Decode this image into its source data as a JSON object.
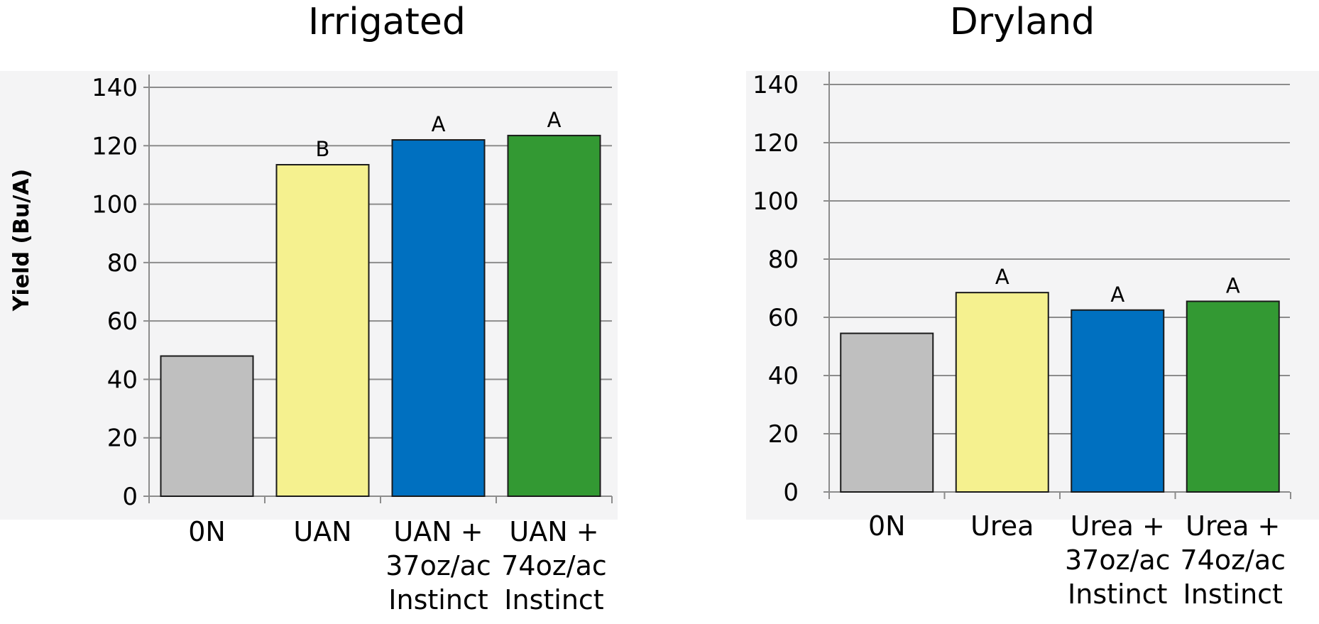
{
  "chart_data": [
    {
      "type": "bar",
      "title": "Irrigated",
      "xlabel": "",
      "ylabel": "Yield (Bu/A)",
      "ylim": [
        0,
        140
      ],
      "yticks": [
        0,
        20,
        40,
        60,
        80,
        100,
        120,
        140
      ],
      "grid": true,
      "categories": [
        [
          "0N"
        ],
        [
          "UAN"
        ],
        [
          "UAN +",
          "37oz/ac",
          "Instinct"
        ],
        [
          "UAN +",
          "74oz/ac",
          "Instinct"
        ]
      ],
      "values": [
        48,
        113.5,
        122,
        123.5
      ],
      "annotations": [
        "",
        "B",
        "A",
        "A"
      ],
      "colors": [
        "#bfbfbf",
        "#f5f18f",
        "#0070c0",
        "#339933"
      ]
    },
    {
      "type": "bar",
      "title": "Dryland",
      "xlabel": "",
      "ylabel": "",
      "ylim": [
        0,
        140
      ],
      "yticks": [
        0,
        20,
        40,
        60,
        80,
        100,
        120,
        140
      ],
      "grid": true,
      "categories": [
        [
          "0N"
        ],
        [
          "Urea"
        ],
        [
          "Urea +",
          "37oz/ac",
          "Instinct"
        ],
        [
          "Urea +",
          "74oz/ac",
          "Instinct"
        ]
      ],
      "values": [
        54.5,
        68.5,
        62.5,
        65.5
      ],
      "annotations": [
        "",
        "A",
        "A",
        "A"
      ],
      "colors": [
        "#bfbfbf",
        "#f5f18f",
        "#0070c0",
        "#339933"
      ]
    }
  ]
}
